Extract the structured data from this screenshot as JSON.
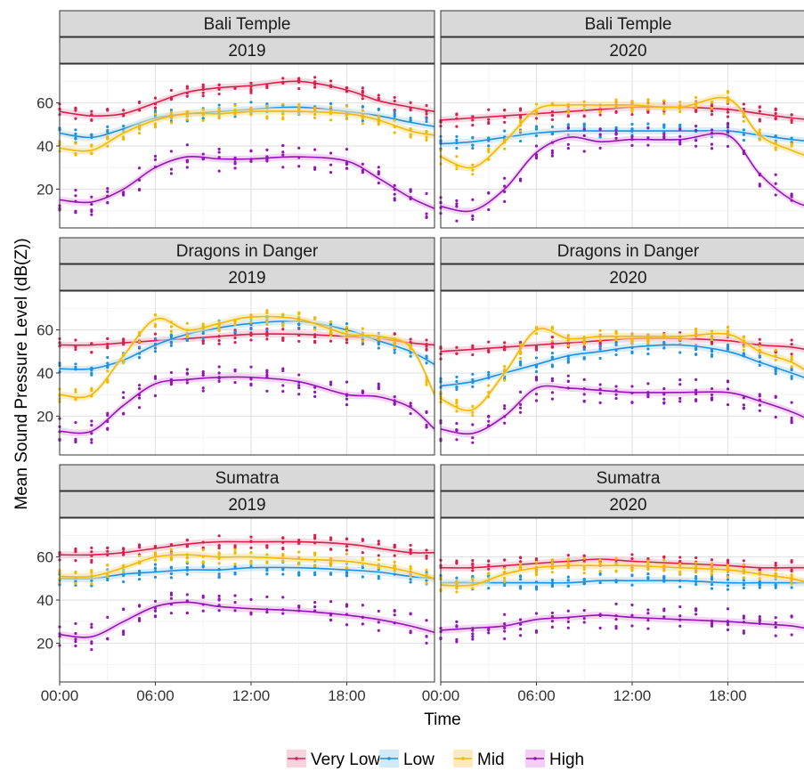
{
  "chart_data": {
    "type": "line",
    "ylabel": "Mean Sound Pressure Level (dB(Z))",
    "xlabel": "Time",
    "x_ticks": [
      {
        "hour": 0,
        "label": "00:00"
      },
      {
        "hour": 6,
        "label": "06:00"
      },
      {
        "hour": 12,
        "label": "12:00"
      },
      {
        "hour": 18,
        "label": "18:00"
      }
    ],
    "y_ticks": [
      20,
      40,
      60
    ],
    "xlim": [
      0,
      23.5
    ],
    "ylim": [
      2,
      78
    ],
    "grid": true,
    "legend_position": "bottom",
    "series_colors": {
      "Very Low": "#d6204e",
      "Low": "#1e90e0",
      "Mid": "#f5b800",
      "High": "#8e18b0"
    },
    "band_colors": {
      "Very Low": "#f4c2cf",
      "Low": "#bfe0f5",
      "Mid": "#f9e3a2",
      "High": "#f0b8f4"
    },
    "legend": [
      {
        "name": "Very Low"
      },
      {
        "name": "Low"
      },
      {
        "name": "Mid"
      },
      {
        "name": "High"
      }
    ],
    "panels": [
      {
        "row": 0,
        "col": 0,
        "site": "Bali Temple",
        "year": "2019",
        "series": [
          {
            "name": "Very Low",
            "x": [
              0,
              2,
              4,
              6,
              8,
              10,
              12,
              15,
              18,
              20,
              22,
              23.5
            ],
            "y": [
              56,
              54,
              55,
              60,
              65,
              67,
              68,
              70,
              66,
              61,
              58,
              56
            ]
          },
          {
            "name": "Low",
            "x": [
              0,
              2,
              4,
              6,
              8,
              10,
              12,
              15,
              18,
              20,
              22,
              23.5
            ],
            "y": [
              46,
              44,
              48,
              53,
              55,
              56,
              57,
              58,
              56,
              54,
              51,
              49
            ]
          },
          {
            "name": "Mid",
            "x": [
              0,
              2,
              4,
              6,
              8,
              10,
              12,
              15,
              18,
              20,
              22,
              23.5
            ],
            "y": [
              39,
              38,
              46,
              52,
              55,
              55,
              56,
              56,
              55,
              52,
              47,
              45
            ]
          },
          {
            "name": "High",
            "x": [
              0,
              2,
              4,
              6,
              8,
              10,
              12,
              15,
              18,
              20,
              22,
              23.5
            ],
            "y": [
              15,
              14,
              20,
              30,
              35,
              34,
              34,
              35,
              33,
              25,
              16,
              11
            ]
          }
        ]
      },
      {
        "row": 0,
        "col": 1,
        "site": "Bali Temple",
        "year": "2020",
        "series": [
          {
            "name": "Very Low",
            "x": [
              0,
              2,
              4,
              6,
              8,
              10,
              12,
              15,
              18,
              20,
              22,
              23.5
            ],
            "y": [
              52,
              53,
              54,
              55,
              56,
              57,
              58,
              58,
              57,
              55,
              53,
              52
            ]
          },
          {
            "name": "Low",
            "x": [
              0,
              2,
              4,
              6,
              8,
              10,
              12,
              15,
              18,
              20,
              22,
              23.5
            ],
            "y": [
              41,
              42,
              44,
              46,
              47,
              47,
              47,
              47,
              47,
              45,
              43,
              42
            ]
          },
          {
            "name": "Mid",
            "x": [
              0,
              2,
              4,
              6,
              8,
              10,
              12,
              15,
              18,
              20,
              22,
              23.5
            ],
            "y": [
              35,
              30,
              42,
              57,
              59,
              59,
              59,
              58,
              62,
              45,
              38,
              34
            ]
          },
          {
            "name": "High",
            "x": [
              0,
              2,
              4,
              6,
              8,
              10,
              12,
              15,
              18,
              20,
              22,
              23.5
            ],
            "y": [
              12,
              10,
              20,
              37,
              44,
              42,
              43,
              43,
              45,
              27,
              15,
              11
            ]
          }
        ]
      },
      {
        "row": 1,
        "col": 0,
        "site": "Dragons in Danger",
        "year": "2019",
        "series": [
          {
            "name": "Very Low",
            "x": [
              0,
              2,
              4,
              6,
              8,
              10,
              12,
              15,
              18,
              20,
              22,
              23.5
            ],
            "y": [
              53,
              53,
              54,
              55,
              56,
              57,
              58,
              58,
              57,
              56,
              54,
              53
            ]
          },
          {
            "name": "Low",
            "x": [
              0,
              2,
              4,
              6,
              8,
              10,
              12,
              15,
              18,
              20,
              22,
              23.5
            ],
            "y": [
              42,
              42,
              46,
              53,
              58,
              61,
              63,
              64,
              60,
              55,
              50,
              44
            ]
          },
          {
            "name": "Mid",
            "x": [
              0,
              2,
              4,
              6,
              8,
              10,
              12,
              15,
              18,
              20,
              22,
              23.5
            ],
            "y": [
              30,
              30,
              48,
              65,
              60,
              63,
              66,
              65,
              58,
              57,
              52,
              30
            ]
          },
          {
            "name": "High",
            "x": [
              0,
              2,
              4,
              6,
              8,
              10,
              12,
              15,
              18,
              20,
              22,
              23.5
            ],
            "y": [
              13,
              13,
              25,
              35,
              37,
              38,
              38,
              36,
              30,
              29,
              24,
              14
            ]
          }
        ]
      },
      {
        "row": 1,
        "col": 1,
        "site": "Dragons in Danger",
        "year": "2020",
        "series": [
          {
            "name": "Very Low",
            "x": [
              0,
              2,
              4,
              6,
              8,
              10,
              12,
              15,
              18,
              20,
              22,
              23.5
            ],
            "y": [
              50,
              51,
              52,
              53,
              54,
              55,
              56,
              56,
              55,
              53,
              52,
              50
            ]
          },
          {
            "name": "Low",
            "x": [
              0,
              2,
              4,
              6,
              8,
              10,
              12,
              15,
              18,
              20,
              22,
              23.5
            ],
            "y": [
              34,
              36,
              40,
              44,
              48,
              50,
              52,
              53,
              50,
              45,
              40,
              36
            ]
          },
          {
            "name": "Mid",
            "x": [
              0,
              2,
              4,
              6,
              8,
              10,
              12,
              15,
              18,
              20,
              22,
              23.5
            ],
            "y": [
              28,
              23,
              40,
              60,
              56,
              57,
              57,
              57,
              58,
              50,
              45,
              38
            ]
          },
          {
            "name": "High",
            "x": [
              0,
              2,
              4,
              6,
              8,
              10,
              12,
              15,
              18,
              20,
              22,
              23.5
            ],
            "y": [
              14,
              12,
              20,
              33,
              33,
              32,
              31,
              31,
              31,
              27,
              22,
              17
            ]
          }
        ]
      },
      {
        "row": 2,
        "col": 0,
        "site": "Sumatra",
        "year": "2019",
        "series": [
          {
            "name": "Very Low",
            "x": [
              0,
              2,
              4,
              6,
              8,
              10,
              12,
              15,
              18,
              20,
              22,
              23.5
            ],
            "y": [
              61,
              61,
              62,
              64,
              66,
              67,
              67,
              67,
              66,
              64,
              62,
              62
            ]
          },
          {
            "name": "Low",
            "x": [
              0,
              2,
              4,
              6,
              8,
              10,
              12,
              15,
              18,
              20,
              22,
              23.5
            ],
            "y": [
              50,
              50,
              52,
              53,
              54,
              54,
              55,
              55,
              54,
              53,
              51,
              50
            ]
          },
          {
            "name": "Mid",
            "x": [
              0,
              2,
              4,
              6,
              8,
              10,
              12,
              15,
              18,
              20,
              22,
              23.5
            ],
            "y": [
              51,
              51,
              55,
              60,
              61,
              60,
              60,
              59,
              58,
              56,
              53,
              50
            ]
          },
          {
            "name": "High",
            "x": [
              0,
              2,
              4,
              6,
              8,
              10,
              12,
              15,
              18,
              20,
              22,
              23.5
            ],
            "y": [
              24,
              23,
              30,
              37,
              39,
              37,
              36,
              35,
              33,
              31,
              28,
              25
            ]
          }
        ]
      },
      {
        "row": 2,
        "col": 1,
        "site": "Sumatra",
        "year": "2020",
        "series": [
          {
            "name": "Very Low",
            "x": [
              0,
              2,
              4,
              6,
              8,
              10,
              12,
              15,
              18,
              20,
              22,
              23.5
            ],
            "y": [
              55,
              55,
              56,
              57,
              58,
              59,
              58,
              57,
              56,
              55,
              55,
              55
            ]
          },
          {
            "name": "Low",
            "x": [
              0,
              2,
              4,
              6,
              8,
              10,
              12,
              15,
              18,
              20,
              22,
              23.5
            ],
            "y": [
              48,
              48,
              48,
              48,
              48,
              49,
              49,
              49,
              48,
              48,
              48,
              48
            ]
          },
          {
            "name": "Mid",
            "x": [
              0,
              2,
              4,
              6,
              8,
              10,
              12,
              15,
              18,
              20,
              22,
              23.5
            ],
            "y": [
              47,
              47,
              52,
              55,
              56,
              56,
              56,
              55,
              54,
              52,
              50,
              47
            ]
          },
          {
            "name": "High",
            "x": [
              0,
              2,
              4,
              6,
              8,
              10,
              12,
              15,
              18,
              20,
              22,
              23.5
            ],
            "y": [
              26,
              27,
              28,
              31,
              32,
              33,
              32,
              31,
              30,
              29,
              28,
              26
            ]
          }
        ]
      }
    ]
  }
}
